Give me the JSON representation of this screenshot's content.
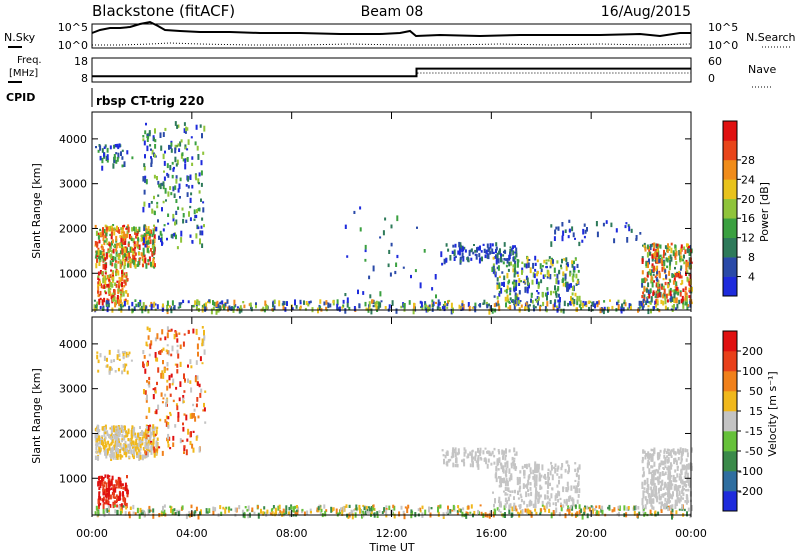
{
  "header": {
    "station": "Blackstone (fitACF)",
    "beam": "Beam 08",
    "date": "16/Aug/2015"
  },
  "chart_data": [
    {
      "type": "line",
      "panel": "noise",
      "left_label": "N.Sky",
      "right_label": "N.Search",
      "left_ticks": [
        "10^5",
        "10^0"
      ],
      "right_ticks": [
        "10^5",
        "10^0"
      ]
    },
    {
      "type": "line",
      "panel": "frequency",
      "left_label_line1": "Freq.",
      "left_label_line2": "[MHz]",
      "right_label": "Nave",
      "left_ticks": [
        "18",
        "8"
      ],
      "right_ticks": [
        "60",
        "0"
      ],
      "ylim_freq": [
        8,
        18
      ],
      "ylim_nave": [
        0,
        60
      ],
      "freq_segments": [
        {
          "t0": 0.0,
          "t1": 13.0,
          "value": 10.4
        },
        {
          "t0": 13.0,
          "t1": 24.0,
          "value": 13.6
        }
      ]
    },
    {
      "type": "label",
      "panel": "cpid",
      "label": "CPID",
      "program": "rbsp CT-trig 220"
    },
    {
      "type": "heatmap",
      "panel": "power",
      "ylabel": "Slant Range [km]",
      "y_ticks": [
        "1000",
        "2000",
        "3000",
        "4000"
      ],
      "ylim": [
        180,
        4600
      ],
      "colorbar_label": "Power [dB]",
      "colorbar_ticks": [
        "4",
        "8",
        "12",
        "16",
        "20",
        "24",
        "28"
      ]
    },
    {
      "type": "heatmap",
      "panel": "velocity",
      "ylabel": "Slant Range [km]",
      "y_ticks": [
        "1000",
        "2000",
        "3000",
        "4000"
      ],
      "ylim": [
        180,
        4600
      ],
      "colorbar_label": "Velocity [m s⁻¹]",
      "colorbar_ticks": [
        "200",
        "100",
        "50",
        "15",
        "-15",
        "-50",
        "-100",
        "-200"
      ]
    },
    {
      "type": "axis",
      "xlabel": "Time UT",
      "x_ticks": [
        "00:00",
        "04:00",
        "08:00",
        "12:00",
        "16:00",
        "20:00",
        "00:00"
      ],
      "xlim": [
        0,
        24
      ]
    }
  ],
  "colors": {
    "power_scale": [
      "#1e2bdc",
      "#2a4aa8",
      "#2e7a5a",
      "#3aa040",
      "#8fc43a",
      "#e8c31c",
      "#f08c1a",
      "#e8451a",
      "#e01010"
    ],
    "velocity_scale": [
      "#1e2bdc",
      "#2f6ea0",
      "#3a8a4a",
      "#66c13a",
      "#c4c4c4",
      "#f0b81c",
      "#f0801a",
      "#e8401a",
      "#e01010"
    ]
  }
}
